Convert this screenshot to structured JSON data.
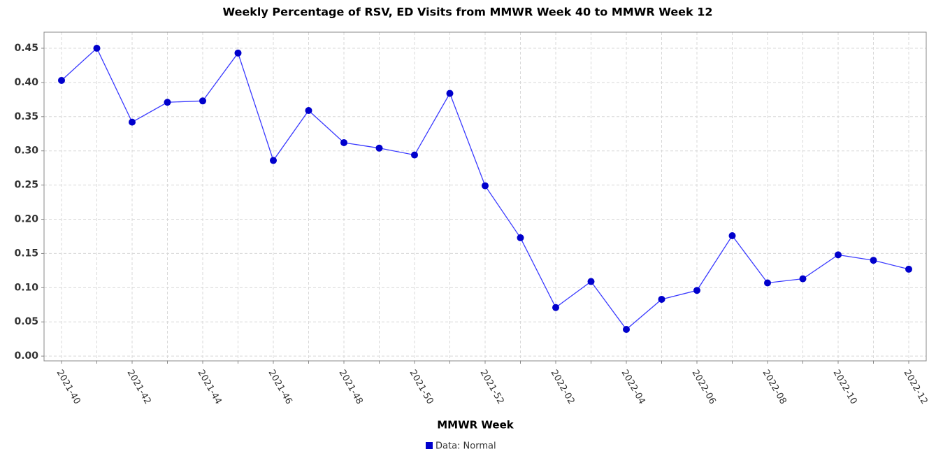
{
  "chart_data": {
    "type": "line",
    "title": "Weekly Percentage of RSV, ED Visits from MMWR Week 40 to MMWR Week 12",
    "x_label": "MMWR Week",
    "categories": [
      "2021-40",
      null,
      "2021-42",
      null,
      "2021-44",
      null,
      "2021-46",
      null,
      "2021-48",
      null,
      "2021-50",
      null,
      "2021-52",
      null,
      "2022-02",
      null,
      "2022-04",
      null,
      "2022-06",
      null,
      "2022-08",
      null,
      "2022-10",
      null,
      "2022-12"
    ],
    "series": [
      {
        "name": "Data: Normal",
        "color": "#0000cc",
        "line_color": "#3a3aff",
        "values": [
          0.403,
          0.45,
          0.342,
          0.371,
          0.373,
          0.443,
          0.286,
          0.359,
          0.312,
          0.304,
          0.294,
          0.384,
          0.249,
          0.173,
          0.071,
          0.109,
          0.039,
          0.083,
          0.096,
          0.176,
          0.107,
          0.113,
          0.148,
          0.14,
          0.127
        ]
      }
    ],
    "ylim": [
      -0.007,
      0.4735
    ],
    "yticks": [
      {
        "value": 0,
        "label": "0.00"
      },
      0.05,
      {
        "value": 0.1,
        "label": "0.10"
      },
      0.15,
      {
        "value": 0.2,
        "label": "0.20"
      },
      0.25,
      {
        "value": 0.3,
        "label": "0.30"
      },
      0.35,
      {
        "value": 0.4,
        "label": "0.40"
      },
      0.45
    ],
    "grid": true,
    "legend": "bottom"
  }
}
